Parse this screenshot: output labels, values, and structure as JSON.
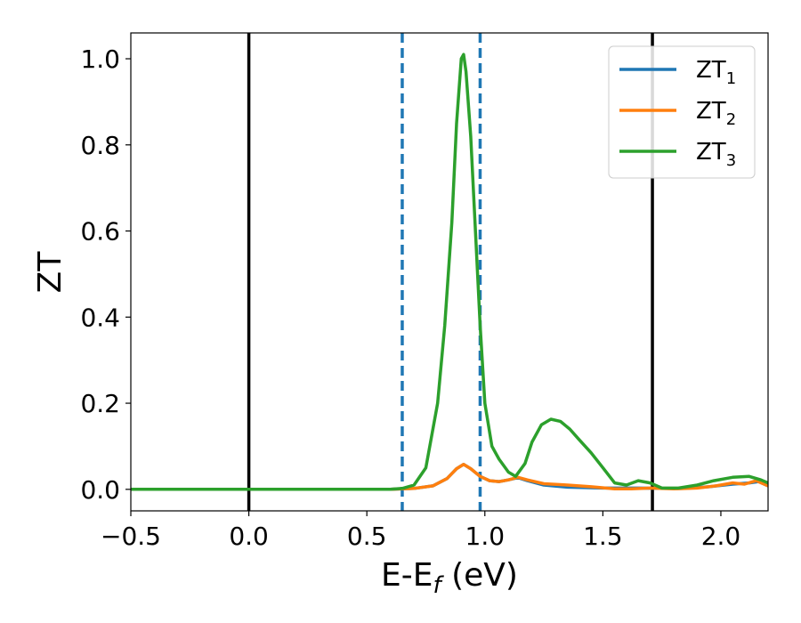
{
  "chart_data": {
    "type": "line",
    "xlabel": "E-E",
    "xlabel_sub": "f",
    "xlabel_unit": " (eV)",
    "ylabel": "ZT",
    "xlim": [
      -0.5,
      2.2
    ],
    "ylim": [
      -0.05,
      1.06
    ],
    "grid": false,
    "legend_position": "top-right",
    "x_ticks": [
      {
        "value": -0.5,
        "label": "−0.5"
      },
      {
        "value": 0.0,
        "label": "0.0"
      },
      {
        "value": 0.5,
        "label": "0.5"
      },
      {
        "value": 1.0,
        "label": "1.0"
      },
      {
        "value": 1.5,
        "label": "1.5"
      },
      {
        "value": 2.0,
        "label": "2.0"
      }
    ],
    "y_ticks": [
      {
        "value": 0.0,
        "label": "0.0"
      },
      {
        "value": 0.2,
        "label": "0.2"
      },
      {
        "value": 0.4,
        "label": "0.4"
      },
      {
        "value": 0.6,
        "label": "0.6"
      },
      {
        "value": 0.8,
        "label": "0.8"
      },
      {
        "value": 1.0,
        "label": "1.0"
      }
    ],
    "vlines": [
      {
        "x": 0.0,
        "color": "#000000",
        "style": "solid"
      },
      {
        "x": 1.71,
        "color": "#000000",
        "style": "solid"
      },
      {
        "x": 0.65,
        "color": "#1f77b4",
        "style": "dashed"
      },
      {
        "x": 0.98,
        "color": "#1f77b4",
        "style": "dashed"
      }
    ],
    "series": [
      {
        "name": "ZT",
        "sub": "1",
        "color": "#1f77b4",
        "points": [
          [
            -0.5,
            0
          ],
          [
            0.6,
            0
          ],
          [
            0.7,
            0.002
          ],
          [
            0.78,
            0.008
          ],
          [
            0.84,
            0.025
          ],
          [
            0.88,
            0.048
          ],
          [
            0.91,
            0.058
          ],
          [
            0.94,
            0.048
          ],
          [
            0.98,
            0.03
          ],
          [
            1.02,
            0.02
          ],
          [
            1.06,
            0.018
          ],
          [
            1.1,
            0.022
          ],
          [
            1.14,
            0.027
          ],
          [
            1.18,
            0.02
          ],
          [
            1.25,
            0.01
          ],
          [
            1.35,
            0.005
          ],
          [
            1.5,
            0.003
          ],
          [
            1.65,
            0.003
          ],
          [
            1.75,
            0.002
          ],
          [
            1.85,
            0.002
          ],
          [
            1.95,
            0.006
          ],
          [
            2.05,
            0.012
          ],
          [
            2.12,
            0.015
          ],
          [
            2.16,
            0.018
          ],
          [
            2.2,
            0.008
          ]
        ]
      },
      {
        "name": "ZT",
        "sub": "2",
        "color": "#ff7f0e",
        "points": [
          [
            -0.5,
            0
          ],
          [
            0.6,
            0
          ],
          [
            0.7,
            0.002
          ],
          [
            0.78,
            0.008
          ],
          [
            0.84,
            0.025
          ],
          [
            0.88,
            0.048
          ],
          [
            0.91,
            0.058
          ],
          [
            0.94,
            0.048
          ],
          [
            0.98,
            0.03
          ],
          [
            1.02,
            0.02
          ],
          [
            1.06,
            0.018
          ],
          [
            1.1,
            0.022
          ],
          [
            1.14,
            0.028
          ],
          [
            1.18,
            0.022
          ],
          [
            1.25,
            0.013
          ],
          [
            1.35,
            0.01
          ],
          [
            1.45,
            0.006
          ],
          [
            1.55,
            0.001
          ],
          [
            1.62,
            0.001
          ],
          [
            1.7,
            0.003
          ],
          [
            1.8,
            0.001
          ],
          [
            1.9,
            0.003
          ],
          [
            1.98,
            0.008
          ],
          [
            2.05,
            0.015
          ],
          [
            2.1,
            0.012
          ],
          [
            2.15,
            0.02
          ],
          [
            2.2,
            0.008
          ]
        ]
      },
      {
        "name": "ZT",
        "sub": "3",
        "color": "#2ca02c",
        "points": [
          [
            -0.5,
            0
          ],
          [
            0.6,
            0
          ],
          [
            0.65,
            0.002
          ],
          [
            0.7,
            0.01
          ],
          [
            0.75,
            0.05
          ],
          [
            0.8,
            0.2
          ],
          [
            0.83,
            0.38
          ],
          [
            0.86,
            0.62
          ],
          [
            0.88,
            0.85
          ],
          [
            0.9,
            1.0
          ],
          [
            0.91,
            1.01
          ],
          [
            0.92,
            0.97
          ],
          [
            0.94,
            0.82
          ],
          [
            0.96,
            0.6
          ],
          [
            0.98,
            0.38
          ],
          [
            1.0,
            0.2
          ],
          [
            1.03,
            0.1
          ],
          [
            1.06,
            0.07
          ],
          [
            1.1,
            0.04
          ],
          [
            1.13,
            0.03
          ],
          [
            1.17,
            0.06
          ],
          [
            1.2,
            0.11
          ],
          [
            1.24,
            0.15
          ],
          [
            1.28,
            0.163
          ],
          [
            1.32,
            0.158
          ],
          [
            1.36,
            0.14
          ],
          [
            1.4,
            0.115
          ],
          [
            1.45,
            0.085
          ],
          [
            1.5,
            0.05
          ],
          [
            1.55,
            0.015
          ],
          [
            1.6,
            0.01
          ],
          [
            1.65,
            0.02
          ],
          [
            1.7,
            0.015
          ],
          [
            1.75,
            0.003
          ],
          [
            1.82,
            0.003
          ],
          [
            1.9,
            0.01
          ],
          [
            1.97,
            0.02
          ],
          [
            2.05,
            0.028
          ],
          [
            2.12,
            0.03
          ],
          [
            2.17,
            0.022
          ],
          [
            2.2,
            0.015
          ]
        ]
      }
    ]
  }
}
